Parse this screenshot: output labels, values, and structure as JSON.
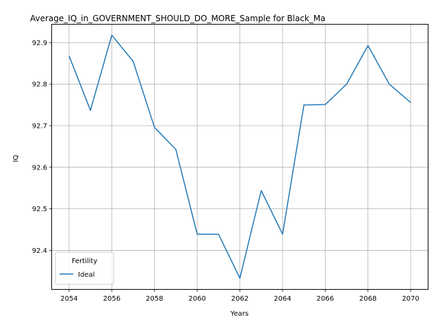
{
  "chart_data": {
    "type": "line",
    "title": "Average_IQ_in_GOVERNMENT_SHOULD_DO_MORE_Sample for Black_Ma",
    "xlabel": "Years",
    "ylabel": "IQ",
    "xlim": [
      2053.2,
      2070.8
    ],
    "ylim": [
      92.307,
      92.945
    ],
    "x_ticks": [
      2054,
      2056,
      2058,
      2060,
      2062,
      2064,
      2066,
      2068,
      2070
    ],
    "y_ticks": [
      92.4,
      92.5,
      92.6,
      92.7,
      92.8,
      92.9
    ],
    "y_tick_labels": [
      "92.4",
      "92.5",
      "92.6",
      "92.7",
      "92.8",
      "92.9"
    ],
    "grid": true,
    "legend": {
      "title": "Fertility",
      "placement": "lower-left"
    },
    "x": [
      2054,
      2055,
      2056,
      2057,
      2058,
      2059,
      2060,
      2061,
      2062,
      2063,
      2064,
      2065,
      2066,
      2067,
      2068,
      2069,
      2070
    ],
    "series": [
      {
        "name": "Ideal",
        "color": "#1f77b4",
        "values": [
          92.868,
          92.737,
          92.918,
          92.855,
          92.696,
          92.643,
          92.439,
          92.439,
          92.333,
          92.544,
          92.439,
          92.75,
          92.751,
          92.8,
          92.893,
          92.8,
          92.756
        ]
      }
    ]
  }
}
